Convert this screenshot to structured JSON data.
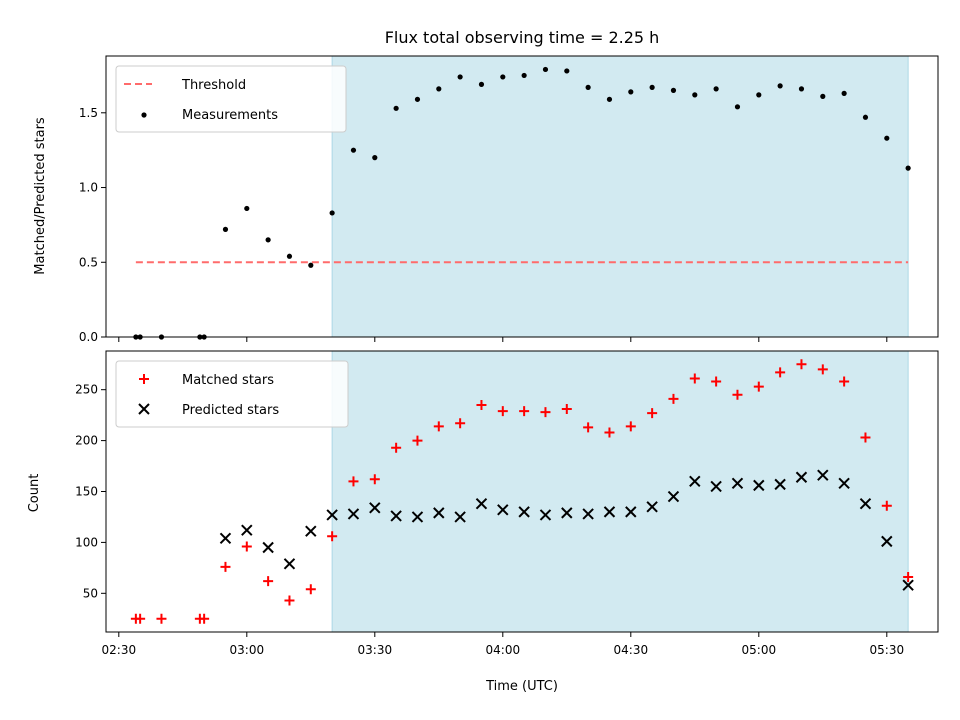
{
  "chart_data": [
    {
      "type": "scatter",
      "title": "Flux total observing time = 2.25 h",
      "xlabel": "",
      "ylabel": "Matched/Predicted stars",
      "xlim": [
        "02:27",
        "05:42"
      ],
      "ylim": [
        0,
        1.88
      ],
      "yticks": [
        0.0,
        0.5,
        1.0,
        1.5
      ],
      "ytick_labels": [
        "0.0",
        "0.5",
        "1.0",
        "1.5"
      ],
      "shaded_span": {
        "from": "03:20",
        "to": "05:35",
        "color": "#add8e6"
      },
      "threshold": {
        "name": "Threshold",
        "value": 0.5,
        "from": "02:34",
        "to": "05:35",
        "color": "#ff6b6b",
        "style": "dashed"
      },
      "legend": {
        "position": "top-left",
        "entries": [
          "Threshold",
          "Measurements"
        ]
      },
      "series": [
        {
          "name": "Measurements",
          "marker": "dot",
          "color": "#000000",
          "points": [
            [
              "02:34",
              0.0
            ],
            [
              "02:35",
              0.0
            ],
            [
              "02:40",
              0.0
            ],
            [
              "02:49",
              0.0
            ],
            [
              "02:50",
              0.0
            ],
            [
              "02:55",
              0.72
            ],
            [
              "03:00",
              0.86
            ],
            [
              "03:05",
              0.65
            ],
            [
              "03:10",
              0.54
            ],
            [
              "03:15",
              0.48
            ],
            [
              "03:20",
              0.83
            ],
            [
              "03:25",
              1.25
            ],
            [
              "03:30",
              1.2
            ],
            [
              "03:35",
              1.53
            ],
            [
              "03:40",
              1.59
            ],
            [
              "03:45",
              1.66
            ],
            [
              "03:50",
              1.74
            ],
            [
              "03:55",
              1.69
            ],
            [
              "04:00",
              1.74
            ],
            [
              "04:05",
              1.75
            ],
            [
              "04:10",
              1.79
            ],
            [
              "04:15",
              1.78
            ],
            [
              "04:20",
              1.67
            ],
            [
              "04:25",
              1.59
            ],
            [
              "04:30",
              1.64
            ],
            [
              "04:35",
              1.67
            ],
            [
              "04:40",
              1.65
            ],
            [
              "04:45",
              1.62
            ],
            [
              "04:50",
              1.66
            ],
            [
              "04:55",
              1.54
            ],
            [
              "05:00",
              1.62
            ],
            [
              "05:05",
              1.68
            ],
            [
              "05:10",
              1.66
            ],
            [
              "05:15",
              1.61
            ],
            [
              "05:20",
              1.63
            ],
            [
              "05:25",
              1.47
            ],
            [
              "05:30",
              1.33
            ],
            [
              "05:35",
              1.13
            ]
          ]
        }
      ]
    },
    {
      "type": "scatter",
      "title": "",
      "xlabel": "Time (UTC)",
      "ylabel": "Count",
      "xlim": [
        "02:27",
        "05:42"
      ],
      "ylim": [
        12,
        288
      ],
      "yticks": [
        50,
        100,
        150,
        200,
        250
      ],
      "ytick_labels": [
        "50",
        "100",
        "150",
        "200",
        "250"
      ],
      "xticks": [
        "02:30",
        "03:00",
        "03:30",
        "04:00",
        "04:30",
        "05:00",
        "05:30"
      ],
      "xtick_labels": [
        "02:30",
        "03:00",
        "03:30",
        "04:00",
        "04:30",
        "05:00",
        "05:30"
      ],
      "shaded_span": {
        "from": "03:20",
        "to": "05:35",
        "color": "#add8e6"
      },
      "legend": {
        "position": "top-left",
        "entries": [
          "Matched stars",
          "Predicted stars"
        ]
      },
      "series": [
        {
          "name": "Matched stars",
          "marker": "plus",
          "color": "#ff0000",
          "points": [
            [
              "02:34",
              25
            ],
            [
              "02:35",
              25
            ],
            [
              "02:40",
              25
            ],
            [
              "02:49",
              25
            ],
            [
              "02:50",
              25
            ],
            [
              "02:55",
              76
            ],
            [
              "03:00",
              96
            ],
            [
              "03:05",
              62
            ],
            [
              "03:10",
              43
            ],
            [
              "03:15",
              54
            ],
            [
              "03:20",
              106
            ],
            [
              "03:25",
              160
            ],
            [
              "03:30",
              162
            ],
            [
              "03:35",
              193
            ],
            [
              "03:40",
              200
            ],
            [
              "03:45",
              214
            ],
            [
              "03:50",
              217
            ],
            [
              "03:55",
              235
            ],
            [
              "04:00",
              229
            ],
            [
              "04:05",
              229
            ],
            [
              "04:10",
              228
            ],
            [
              "04:15",
              231
            ],
            [
              "04:20",
              213
            ],
            [
              "04:25",
              208
            ],
            [
              "04:30",
              214
            ],
            [
              "04:35",
              227
            ],
            [
              "04:40",
              241
            ],
            [
              "04:45",
              261
            ],
            [
              "04:50",
              258
            ],
            [
              "04:55",
              245
            ],
            [
              "05:00",
              253
            ],
            [
              "05:05",
              267
            ],
            [
              "05:10",
              275
            ],
            [
              "05:15",
              270
            ],
            [
              "05:20",
              258
            ],
            [
              "05:25",
              203
            ],
            [
              "05:30",
              136
            ],
            [
              "05:35",
              66
            ]
          ]
        },
        {
          "name": "Predicted stars",
          "marker": "x",
          "color": "#000000",
          "points": [
            [
              "02:55",
              104
            ],
            [
              "03:00",
              112
            ],
            [
              "03:05",
              95
            ],
            [
              "03:10",
              79
            ],
            [
              "03:15",
              111
            ],
            [
              "03:20",
              127
            ],
            [
              "03:25",
              128
            ],
            [
              "03:30",
              134
            ],
            [
              "03:35",
              126
            ],
            [
              "03:40",
              125
            ],
            [
              "03:45",
              129
            ],
            [
              "03:50",
              125
            ],
            [
              "03:55",
              138
            ],
            [
              "04:00",
              132
            ],
            [
              "04:05",
              130
            ],
            [
              "04:10",
              127
            ],
            [
              "04:15",
              129
            ],
            [
              "04:20",
              128
            ],
            [
              "04:25",
              130
            ],
            [
              "04:30",
              130
            ],
            [
              "04:35",
              135
            ],
            [
              "04:40",
              145
            ],
            [
              "04:45",
              160
            ],
            [
              "04:50",
              155
            ],
            [
              "04:55",
              158
            ],
            [
              "05:00",
              156
            ],
            [
              "05:05",
              157
            ],
            [
              "05:10",
              164
            ],
            [
              "05:15",
              166
            ],
            [
              "05:20",
              158
            ],
            [
              "05:25",
              138
            ],
            [
              "05:30",
              101
            ],
            [
              "05:35",
              58
            ]
          ]
        }
      ]
    }
  ]
}
